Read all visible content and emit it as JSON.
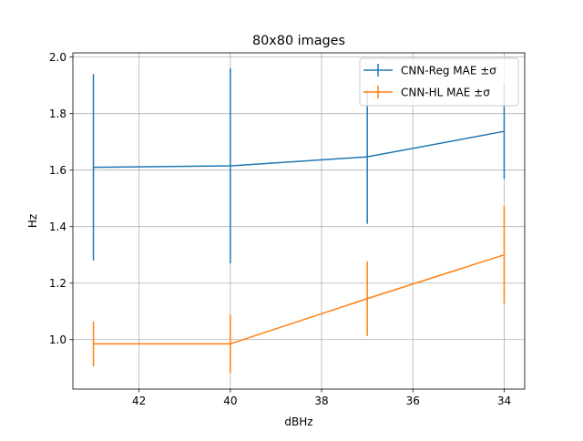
{
  "chart_data": {
    "type": "line",
    "title": "80x80 images",
    "xlabel": "dBHz",
    "ylabel": "Hz",
    "x": [
      43,
      40,
      37,
      34
    ],
    "xlim": [
      43.45,
      33.55
    ],
    "ylim": [
      0.825,
      2.015
    ],
    "x_invert": true,
    "xticks": [
      42,
      40,
      38,
      36,
      34
    ],
    "xtick_labels": [
      "42",
      "40",
      "38",
      "36",
      "34"
    ],
    "yticks": [
      1.0,
      1.2,
      1.4,
      1.6,
      1.8,
      2.0
    ],
    "ytick_labels": [
      "1.0",
      "1.2",
      "1.4",
      "1.6",
      "1.8",
      "2.0"
    ],
    "grid": true,
    "legend_position": "upper-right",
    "series": [
      {
        "name": "CNN-Reg MAE ±σ",
        "color": "#1f77b4",
        "values": [
          1.61,
          1.615,
          1.647,
          1.737
        ],
        "errors": [
          0.33,
          0.345,
          0.237,
          0.168
        ]
      },
      {
        "name": "CNN-HL MAE ±σ",
        "color": "#ff7f0e",
        "values": [
          0.985,
          0.985,
          1.145,
          1.3
        ],
        "errors": [
          0.08,
          0.103,
          0.132,
          0.172
        ]
      }
    ]
  }
}
